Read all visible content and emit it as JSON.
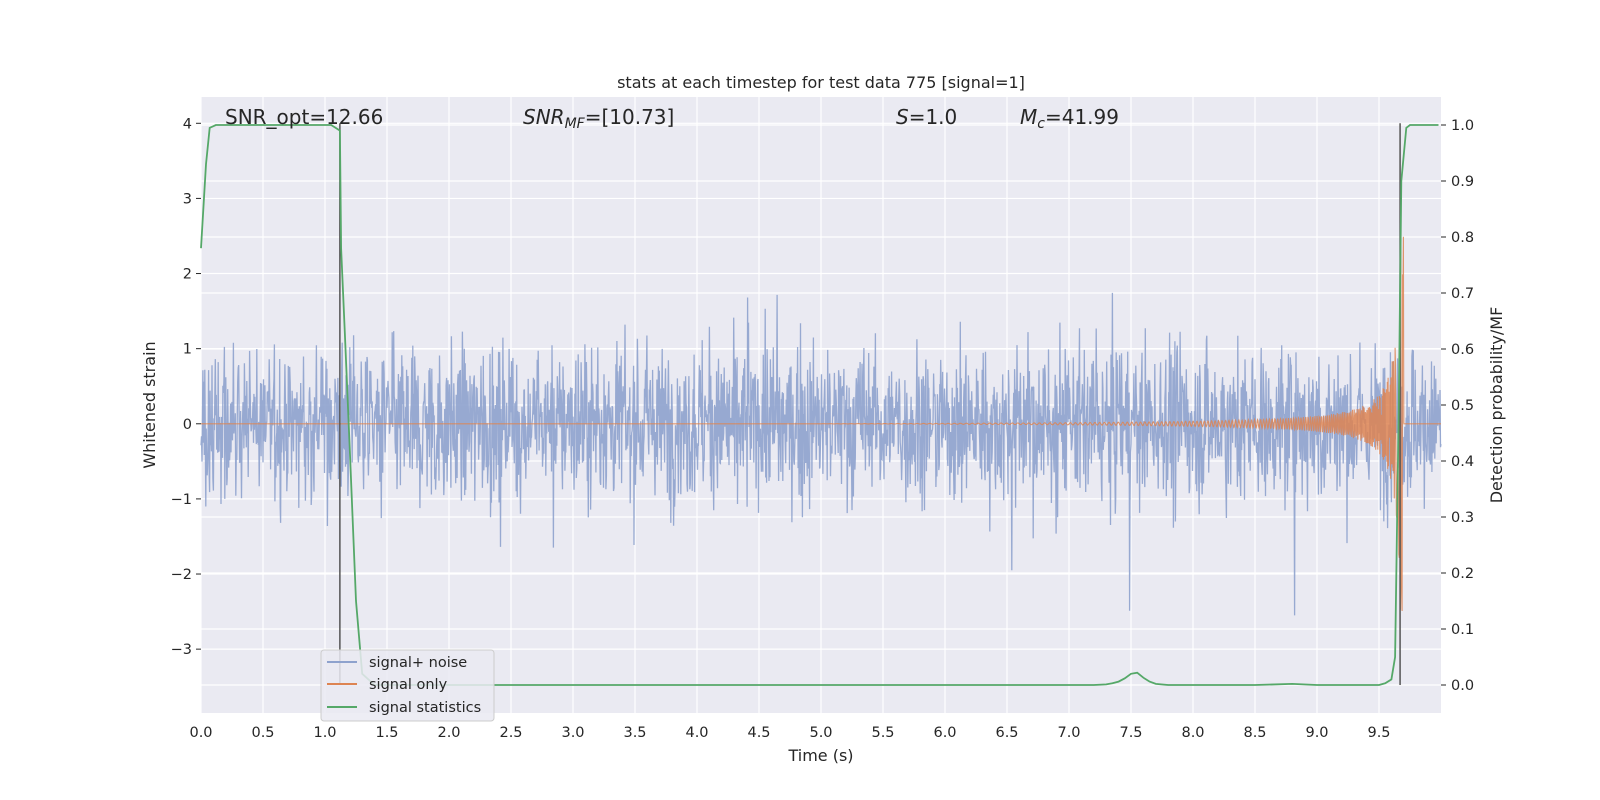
{
  "chart_data": {
    "type": "line",
    "title": "stats at each timestep for test data 775 [signal=1]",
    "xlabel": "Time (s)",
    "ylabel": "Whitened strain",
    "y2label": "Detection probability/MF",
    "xlim": [
      0.0,
      10.0
    ],
    "ylim": [
      -3.85,
      4.35
    ],
    "y2lim": [
      -0.05,
      1.05
    ],
    "x_ticks": [
      "0.0",
      "0.5",
      "1.0",
      "1.5",
      "2.0",
      "2.5",
      "3.0",
      "3.5",
      "4.0",
      "4.5",
      "5.0",
      "5.5",
      "6.0",
      "6.5",
      "7.0",
      "7.5",
      "8.0",
      "8.5",
      "9.0",
      "9.5"
    ],
    "y_ticks": [
      "4",
      "3",
      "2",
      "1",
      "0",
      "−1",
      "−2",
      "−3"
    ],
    "y2_ticks": [
      "1.0",
      "0.9",
      "0.8",
      "0.7",
      "0.6",
      "0.5",
      "0.4",
      "0.3",
      "0.2",
      "0.1",
      "0.0"
    ],
    "grid": true,
    "legend_position": "lower-left",
    "annotations": {
      "snr_opt": "SNR_opt=12.66",
      "snr_mf_sym": "SNR",
      "snr_mf_sub": "MF",
      "snr_mf_val": "=[10.73]",
      "s_sym": "S",
      "s_val": "=1.0",
      "mc_sym": "M",
      "mc_sub": "c",
      "mc_val": "=41.99"
    },
    "vertical_markers": [
      1.12,
      9.67
    ],
    "series": [
      {
        "name": "signal+ noise",
        "color": "#8ea2cd",
        "description_values": "noise band approx ±1.5, spikes to ~±3"
      },
      {
        "name": "signal only",
        "color": "#dd8452",
        "chirp_start": 5.0,
        "chirp_peak_time": 9.65,
        "chirp_peak_amp": 2.5
      },
      {
        "name": "signal statistics",
        "color": "#55a868",
        "x": [
          0.0,
          0.04,
          0.07,
          0.12,
          0.3,
          0.6,
          0.9,
          1.05,
          1.12,
          1.13,
          1.16,
          1.2,
          1.25,
          1.3,
          1.4,
          2.0,
          3.0,
          4.0,
          5.0,
          6.0,
          7.0,
          7.2,
          7.3,
          7.35,
          7.4,
          7.45,
          7.5,
          7.55,
          7.6,
          7.65,
          7.7,
          7.8,
          8.0,
          8.5,
          8.8,
          9.0,
          9.3,
          9.5,
          9.55,
          9.6,
          9.63,
          9.66,
          9.68,
          9.72,
          9.75,
          9.8,
          9.9,
          9.98
        ],
        "y": [
          0.78,
          0.93,
          0.995,
          1.0,
          1.0,
          1.0,
          1.0,
          1.0,
          0.99,
          0.78,
          0.63,
          0.42,
          0.15,
          0.02,
          0.0,
          0.0,
          0.0,
          0.0,
          0.0,
          0.0,
          0.0,
          0.0,
          0.001,
          0.003,
          0.006,
          0.012,
          0.02,
          0.022,
          0.013,
          0.006,
          0.002,
          0.0,
          0.0,
          0.0,
          0.002,
          0.0,
          0.0,
          0.0,
          0.003,
          0.01,
          0.05,
          0.5,
          0.9,
          0.995,
          1.0,
          1.0,
          1.0,
          1.0
        ]
      }
    ]
  }
}
